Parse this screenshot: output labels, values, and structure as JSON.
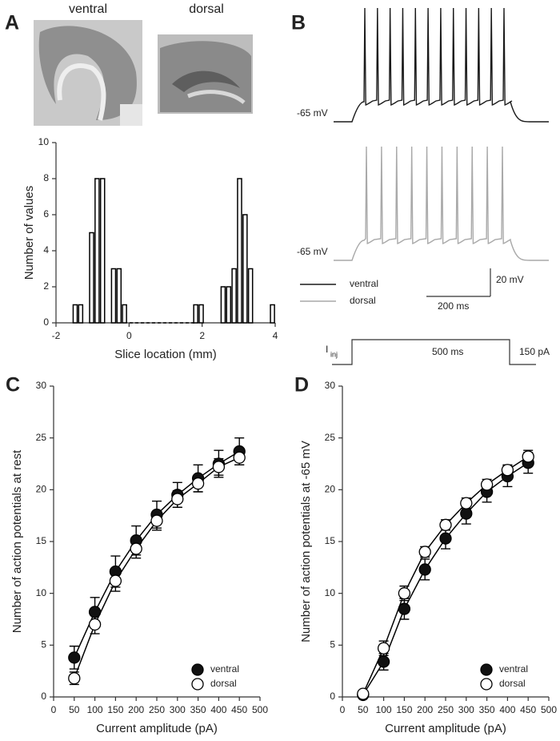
{
  "panel_a": {
    "letter": "A",
    "images": [
      "ventral",
      "dorsal"
    ]
  },
  "panel_b": {
    "letter": "B",
    "traces": [
      {
        "name": "ventral",
        "color": "#1a1a1a",
        "rest_label": "-65 mV"
      },
      {
        "name": "dorsal",
        "color": "#a9a9a9",
        "rest_label": "-65 mV"
      }
    ],
    "scale_bars": {
      "voltage": "20 mV",
      "time": "200 ms"
    },
    "stimulus": {
      "label": "I",
      "subscript": "inj",
      "duration": "500 ms",
      "amplitude": "150 pA"
    }
  },
  "chart_data": [
    {
      "type": "histogram",
      "xlabel": "Slice location (mm)",
      "ylabel": "Number of values",
      "bins": [
        -1.55,
        -1.4,
        -1.25,
        -1.1,
        -0.95,
        -0.8,
        -0.65,
        -0.5,
        -0.35,
        -0.2,
        -0.05,
        0.1,
        0.25,
        0.4,
        0.55,
        0.7,
        0.85,
        1.0,
        1.15,
        1.3,
        1.45,
        1.6,
        1.75,
        1.9,
        2.05,
        2.2,
        2.35,
        2.5,
        2.65,
        2.8,
        2.95,
        3.1,
        3.25,
        3.4,
        3.55,
        3.7,
        3.85,
        4.0
      ],
      "values": [
        1,
        1,
        0,
        5,
        8,
        8,
        0,
        3,
        3,
        1,
        0,
        0,
        0,
        0,
        0,
        0,
        0,
        0,
        0,
        0,
        0,
        0,
        1,
        1,
        0,
        0,
        0,
        2,
        2,
        3,
        8,
        6,
        3,
        0,
        0,
        0,
        1
      ],
      "color": "#ffffff",
      "edgecolor": "#000000",
      "xlim": [
        -2,
        4
      ],
      "xticks": [
        -2,
        0,
        2,
        4
      ],
      "ylim": [
        0,
        10
      ],
      "yticks": [
        0,
        2,
        4,
        6,
        8,
        10
      ]
    },
    {
      "type": "line",
      "panel": "C",
      "xlabel": "Current amplitude (pA)",
      "ylabel": "Number of action potentials at rest",
      "x": [
        50,
        100,
        150,
        200,
        250,
        300,
        350,
        400,
        450
      ],
      "series": [
        {
          "name": "ventral",
          "color": "#000000",
          "marker_fill": "#111111",
          "values": [
            3.8,
            8.2,
            12.1,
            15.1,
            17.6,
            19.5,
            21.1,
            22.5,
            23.7
          ],
          "errors": [
            1.1,
            1.4,
            1.5,
            1.4,
            1.3,
            1.2,
            1.3,
            1.3,
            1.3
          ]
        },
        {
          "name": "dorsal",
          "color": "#000000",
          "marker_fill": "#ffffff",
          "values": [
            1.8,
            7.0,
            11.2,
            14.3,
            17.0,
            19.1,
            20.6,
            22.2,
            23.1
          ],
          "errors": [
            0.6,
            0.9,
            1.0,
            0.9,
            0.9,
            0.8,
            0.8,
            0.8,
            0.7
          ]
        }
      ],
      "xlim": [
        0,
        500
      ],
      "xticks": [
        0,
        50,
        100,
        150,
        200,
        250,
        300,
        350,
        400,
        450,
        500
      ],
      "ylim": [
        0,
        30
      ],
      "yticks": [
        0,
        5,
        10,
        15,
        20,
        25,
        30
      ],
      "legend": "lower right"
    },
    {
      "type": "line",
      "panel": "D",
      "xlabel": "Current amplitude (pA)",
      "ylabel": "Number of action potentials at -65 mV",
      "x": [
        50,
        100,
        150,
        200,
        250,
        300,
        350,
        400,
        450
      ],
      "series": [
        {
          "name": "ventral",
          "color": "#000000",
          "marker_fill": "#111111",
          "values": [
            0.2,
            3.4,
            8.5,
            12.3,
            15.3,
            17.7,
            19.8,
            21.3,
            22.6
          ],
          "errors": [
            0.2,
            0.8,
            1.0,
            1.0,
            1.0,
            1.0,
            1.0,
            1.0,
            1.0
          ]
        },
        {
          "name": "dorsal",
          "color": "#000000",
          "marker_fill": "#ffffff",
          "values": [
            0.3,
            4.7,
            10.0,
            14.0,
            16.6,
            18.7,
            20.5,
            21.9,
            23.2
          ],
          "errors": [
            0.2,
            0.7,
            0.7,
            0.5,
            0.5,
            0.5,
            0.5,
            0.5,
            0.6
          ]
        }
      ],
      "xlim": [
        0,
        500
      ],
      "xticks": [
        0,
        50,
        100,
        150,
        200,
        250,
        300,
        350,
        400,
        450,
        500
      ],
      "ylim": [
        0,
        30
      ],
      "yticks": [
        0,
        5,
        10,
        15,
        20,
        25,
        30
      ],
      "legend": "lower right"
    }
  ]
}
